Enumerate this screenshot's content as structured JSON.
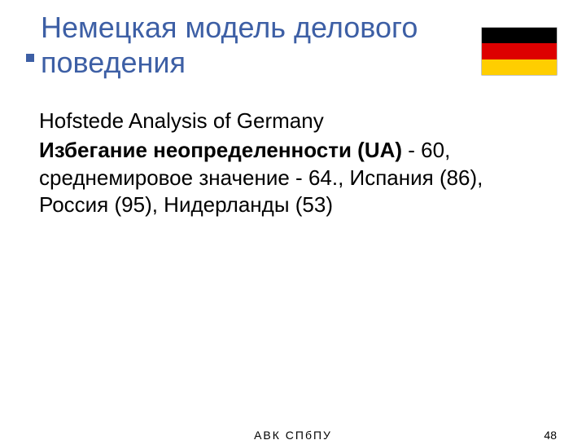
{
  "title": "Немецкая модель делового поведения",
  "title_color": "#3d5fa5",
  "title_fontsize": 36,
  "flag": {
    "stripes": [
      "#000000",
      "#dd0000",
      "#ffce00"
    ]
  },
  "body": {
    "heading": "Hofstede Analysis of Germany",
    "bold_lead": "Избегание неопределенности (UA)",
    "rest": " - 60, среднемировое значение - 64., Испания (86), Россия (95), Нидерланды (53)",
    "fontsize": 26,
    "text_color": "#000000"
  },
  "footer": {
    "center": "АВК    СПбПУ",
    "page_number": "48",
    "fontsize": 14
  },
  "background_color": "#ffffff"
}
